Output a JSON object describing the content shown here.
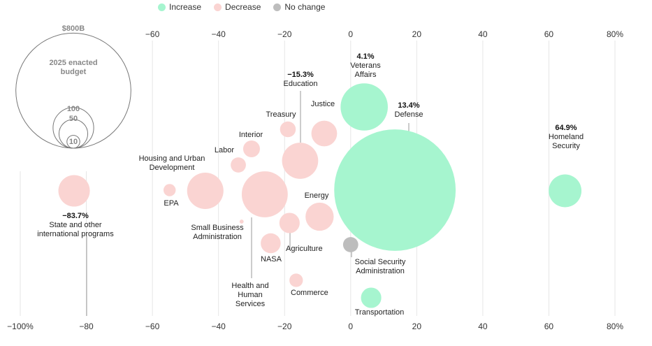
{
  "legend": {
    "increase": "Increase",
    "decrease": "Decrease",
    "no_change": "No change"
  },
  "colors": {
    "increase": "#a6f5cf",
    "decrease": "#fad4d2",
    "no_change": "#bdbdbd",
    "grid": "#e6e6e6",
    "leader": "#999999"
  },
  "size_reference": {
    "title": "2025 enacted budget",
    "labels": [
      "$800B",
      "100",
      "50",
      "10"
    ],
    "values": [
      800,
      100,
      50,
      10
    ]
  },
  "chart_data": {
    "type": "bubble",
    "x_unit": "%",
    "xlim": [
      -100,
      80
    ],
    "x_ticks_top": [
      "−60",
      "−40",
      "−20",
      "0",
      "20",
      "40",
      "60",
      "80%"
    ],
    "x_ticks_bottom": [
      "−100%",
      "−80",
      "−60",
      "−40",
      "−20",
      "0",
      "20",
      "40",
      "60",
      "80%"
    ],
    "grid": true,
    "legend_position": "top-left",
    "points": [
      {
        "label": "Defense",
        "pct_label": "13.4%",
        "x": 13.4,
        "budget": 892,
        "status": "increase"
      },
      {
        "label": "Veterans Affairs",
        "pct_label": "4.1%",
        "x": 4.1,
        "budget": 135,
        "status": "increase"
      },
      {
        "label": "Homeland Security",
        "pct_label": "64.9%",
        "x": 64.9,
        "budget": 65,
        "status": "increase"
      },
      {
        "label": "Transportation",
        "pct_label": "",
        "x": 6.2,
        "budget": 25,
        "status": "increase"
      },
      {
        "label": "Social Security Administration",
        "pct_label": "",
        "x": 0,
        "budget": 14,
        "status": "no_change"
      },
      {
        "label": "Education",
        "pct_label": "−15.3%",
        "x": -15.3,
        "budget": 79,
        "status": "decrease"
      },
      {
        "label": "Justice",
        "pct_label": "",
        "x": -8,
        "budget": 40,
        "status": "decrease"
      },
      {
        "label": "Treasury",
        "pct_label": "",
        "x": -19,
        "budget": 15,
        "status": "decrease"
      },
      {
        "label": "Interior",
        "pct_label": "",
        "x": -30,
        "budget": 17,
        "status": "decrease"
      },
      {
        "label": "Labor",
        "pct_label": "",
        "x": -34,
        "budget": 14,
        "status": "decrease"
      },
      {
        "label": "Housing and Urban Development",
        "pct_label": "",
        "x": -44,
        "budget": 80,
        "status": "decrease"
      },
      {
        "label": "EPA",
        "pct_label": "",
        "x": -54.8,
        "budget": 9,
        "status": "decrease"
      },
      {
        "label": "State and other international programs",
        "pct_label": "−83.7%",
        "x": -83.7,
        "budget": 60,
        "status": "decrease"
      },
      {
        "label": "Health and Human Services",
        "pct_label": "",
        "x": -26,
        "budget": 128,
        "status": "decrease"
      },
      {
        "label": "Small Business Administration",
        "pct_label": "",
        "x": -33,
        "budget": 1,
        "status": "decrease"
      },
      {
        "label": "Energy",
        "pct_label": "",
        "x": -9.4,
        "budget": 48,
        "status": "decrease"
      },
      {
        "label": "Agriculture",
        "pct_label": "",
        "x": -18.5,
        "budget": 25,
        "status": "decrease"
      },
      {
        "label": "NASA",
        "pct_label": "",
        "x": -24.2,
        "budget": 24,
        "status": "decrease"
      },
      {
        "label": "Commerce",
        "pct_label": "",
        "x": -16.5,
        "budget": 11,
        "status": "decrease"
      }
    ]
  }
}
